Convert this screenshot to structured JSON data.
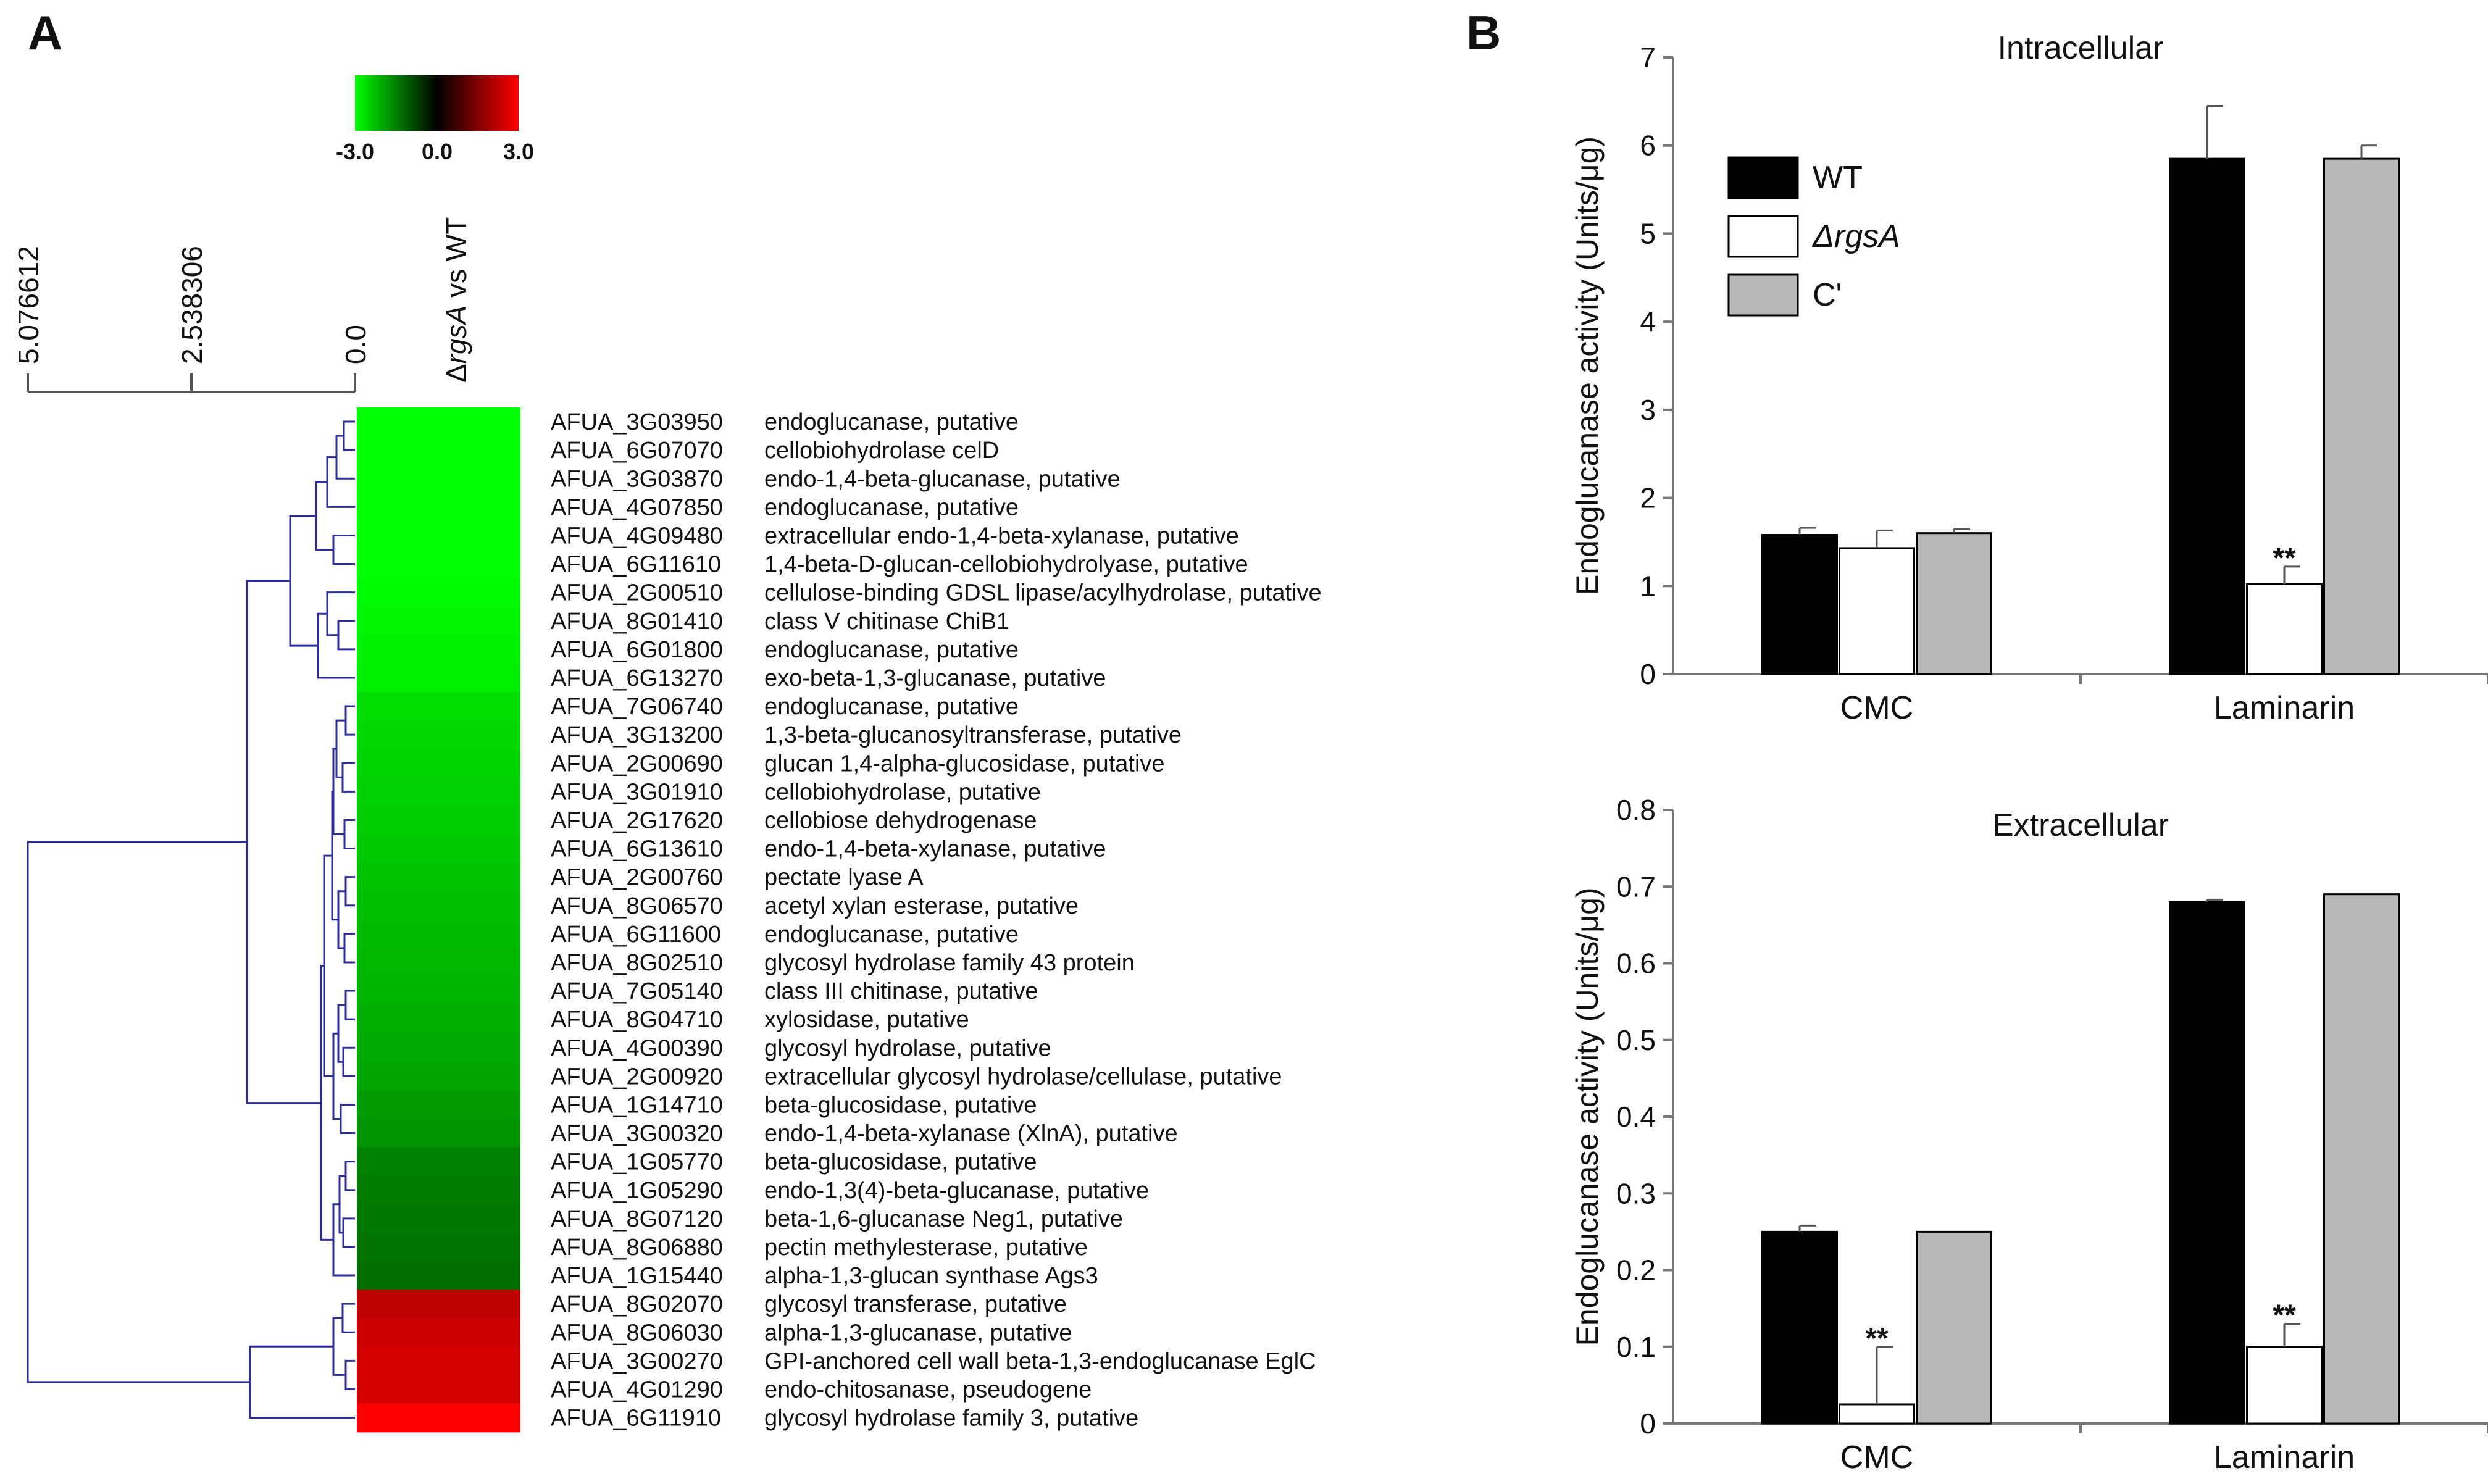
{
  "panels": {
    "a": "A",
    "b": "B"
  },
  "heatmap": {
    "column_label_delta": "Δ",
    "column_label_gene": "rgsA",
    "column_label_rest": " vs WT",
    "color_scale": {
      "min_label": "-3.0",
      "mid_label": "0.0",
      "max_label": "3.0",
      "low_color": "#00ff00",
      "mid_color": "#000000",
      "high_color": "#ff0000"
    },
    "dendrogram_scale": [
      "5.076612",
      "2.538306",
      "0.0"
    ],
    "dendrogram_color": "#2e2e9a",
    "genes": [
      {
        "id": "AFUA_3G03950",
        "desc": "endoglucanase, putative",
        "value": -3.0
      },
      {
        "id": "AFUA_6G07070",
        "desc": "cellobiohydrolase celD",
        "value": -3.0
      },
      {
        "id": "AFUA_3G03870",
        "desc": "endo-1,4-beta-glucanase, putative",
        "value": -3.0
      },
      {
        "id": "AFUA_4G07850",
        "desc": "endoglucanase, putative",
        "value": -3.0
      },
      {
        "id": "AFUA_4G09480",
        "desc": "extracellular endo-1,4-beta-xylanase, putative",
        "value": -3.0
      },
      {
        "id": "AFUA_6G11610",
        "desc": "1,4-beta-D-glucan-cellobiohydrolyase, putative",
        "value": -3.0
      },
      {
        "id": "AFUA_2G00510",
        "desc": "cellulose-binding GDSL lipase/acylhydrolase, putative",
        "value": -2.95
      },
      {
        "id": "AFUA_8G01410",
        "desc": "class V chitinase ChiB1",
        "value": -2.9
      },
      {
        "id": "AFUA_6G01800",
        "desc": "endoglucanase, putative",
        "value": -2.85
      },
      {
        "id": "AFUA_6G13270",
        "desc": "exo-beta-1,3-glucanase, putative",
        "value": -2.8
      },
      {
        "id": "AFUA_7G06740",
        "desc": "endoglucanase, putative",
        "value": -2.6
      },
      {
        "id": "AFUA_3G13200",
        "desc": "1,3-beta-glucanosyltransferase, putative",
        "value": -2.55
      },
      {
        "id": "AFUA_2G00690",
        "desc": "glucan 1,4-alpha-glucosidase, putative",
        "value": -2.5
      },
      {
        "id": "AFUA_3G01910",
        "desc": "cellobiohydrolase, putative",
        "value": -2.45
      },
      {
        "id": "AFUA_2G17620",
        "desc": "cellobiose dehydrogenase",
        "value": -2.4
      },
      {
        "id": "AFUA_6G13610",
        "desc": "endo-1,4-beta-xylanase, putative",
        "value": -2.35
      },
      {
        "id": "AFUA_2G00760",
        "desc": "pectate lyase A",
        "value": -2.3
      },
      {
        "id": "AFUA_8G06570",
        "desc": "acetyl xylan esterase, putative",
        "value": -2.25
      },
      {
        "id": "AFUA_6G11600",
        "desc": "endoglucanase, putative",
        "value": -2.2
      },
      {
        "id": "AFUA_8G02510",
        "desc": "glycosyl hydrolase family 43 protein",
        "value": -2.15
      },
      {
        "id": "AFUA_7G05140",
        "desc": "class III chitinase, putative",
        "value": -2.1
      },
      {
        "id": "AFUA_8G04710",
        "desc": "xylosidase, putative",
        "value": -2.05
      },
      {
        "id": "AFUA_4G00390",
        "desc": "glycosyl hydrolase, putative",
        "value": -2.0
      },
      {
        "id": "AFUA_2G00920",
        "desc": "extracellular glycosyl hydrolase/cellulase, putative",
        "value": -1.95
      },
      {
        "id": "AFUA_1G14710",
        "desc": "beta-glucosidase, putative",
        "value": -1.8
      },
      {
        "id": "AFUA_3G00320",
        "desc": "endo-1,4-beta-xylanase (XlnA), putative",
        "value": -1.75
      },
      {
        "id": "AFUA_1G05770",
        "desc": "beta-glucosidase, putative",
        "value": -1.5
      },
      {
        "id": "AFUA_1G05290",
        "desc": "endo-1,3(4)-beta-glucanase, putative",
        "value": -1.45
      },
      {
        "id": "AFUA_8G07120",
        "desc": "beta-1,6-glucanase Neg1, putative",
        "value": -1.4
      },
      {
        "id": "AFUA_8G06880",
        "desc": "pectin methylesterase, putative",
        "value": -1.35
      },
      {
        "id": "AFUA_1G15440",
        "desc": "alpha-1,3-glucan synthase Ags3",
        "value": -1.3
      },
      {
        "id": "AFUA_8G02070",
        "desc": "glycosyl transferase, putative",
        "value": 2.2
      },
      {
        "id": "AFUA_8G06030",
        "desc": "alpha-1,3-glucanase, putative",
        "value": 2.4
      },
      {
        "id": "AFUA_3G00270",
        "desc": "GPI-anchored cell wall beta-1,3-endoglucanase EglC",
        "value": 2.5
      },
      {
        "id": "AFUA_4G01290",
        "desc": "endo-chitosanase, pseudogene",
        "value": 2.5
      },
      {
        "id": "AFUA_6G11910",
        "desc": "glycosyl hydrolase family 3, putative",
        "value": 3.0
      }
    ]
  },
  "legend": [
    {
      "label": "WT",
      "color": "#000000"
    },
    {
      "prefix": "Δ",
      "label": "rgsA",
      "color": "#ffffff"
    },
    {
      "label": "C'",
      "color": "#b8b8b8"
    }
  ],
  "chart_data": [
    {
      "type": "bar",
      "title": "Intracellular",
      "ylabel": "Endoglucanase activity (Units/μg)",
      "xlabel": "",
      "categories": [
        "CMC",
        "Laminarin"
      ],
      "ylim": [
        0,
        7
      ],
      "yticks": [
        "0",
        "1",
        "2",
        "3",
        "4",
        "5",
        "6",
        "7"
      ],
      "series": [
        {
          "name": "WT",
          "values": [
            1.58,
            5.85
          ],
          "errors": [
            0.08,
            0.6
          ]
        },
        {
          "name": "ΔrgsA",
          "values": [
            1.43,
            1.02
          ],
          "errors": [
            0.2,
            0.2
          ]
        },
        {
          "name": "C'",
          "values": [
            1.6,
            5.85
          ],
          "errors": [
            0.05,
            0.15
          ]
        }
      ],
      "significance": [
        {
          "series": "ΔrgsA",
          "category": "Laminarin",
          "label": "**"
        }
      ]
    },
    {
      "type": "bar",
      "title": "Extracellular",
      "ylabel": "Endoglucanase activity (Units/μg)",
      "xlabel": "",
      "categories": [
        "CMC",
        "Laminarin"
      ],
      "ylim": [
        0,
        0.8
      ],
      "yticks": [
        "0",
        "0.1",
        "0.2",
        "0.3",
        "0.4",
        "0.5",
        "0.6",
        "0.7",
        "0.8"
      ],
      "series": [
        {
          "name": "WT",
          "values": [
            0.25,
            0.68
          ],
          "errors": [
            0.008,
            0.003
          ]
        },
        {
          "name": "ΔrgsA",
          "values": [
            0.025,
            0.1
          ],
          "errors": [
            0.075,
            0.03
          ]
        },
        {
          "name": "C'",
          "values": [
            0.25,
            0.69
          ],
          "errors": [
            0,
            0
          ]
        }
      ],
      "significance": [
        {
          "series": "ΔrgsA",
          "category": "CMC",
          "label": "**"
        },
        {
          "series": "ΔrgsA",
          "category": "Laminarin",
          "label": "**"
        }
      ]
    }
  ]
}
